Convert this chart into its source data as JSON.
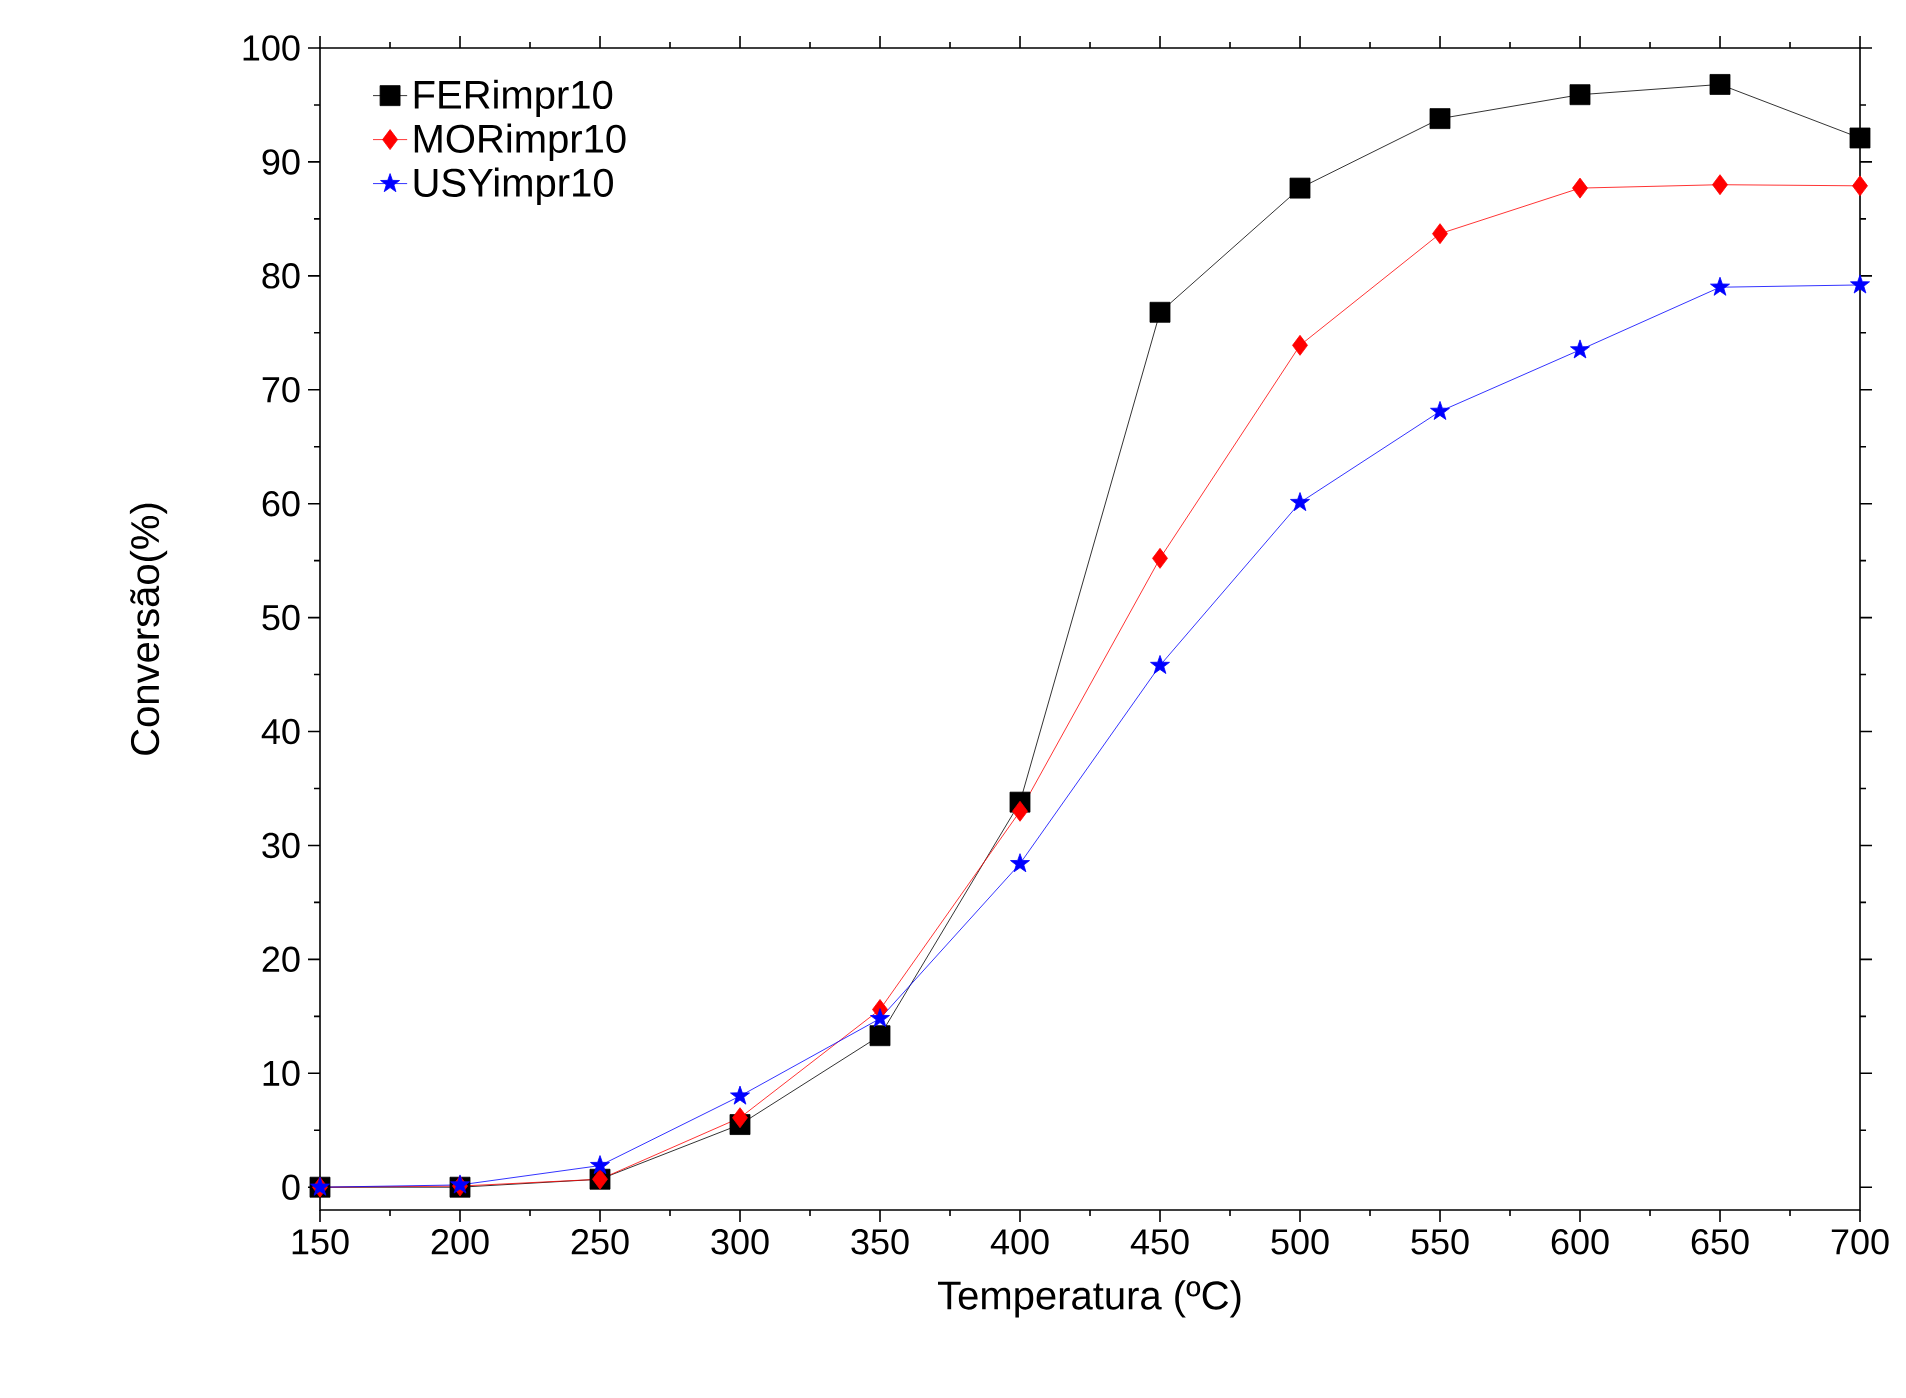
{
  "chart_data": {
    "type": "line",
    "xlabel": "Temperatura (ºC)",
    "ylabel": "Conversão(%)",
    "x": [
      150,
      200,
      250,
      300,
      350,
      400,
      450,
      500,
      550,
      600,
      650,
      700
    ],
    "series": [
      {
        "name": "FERimpr10",
        "color": "#000000",
        "marker": "square",
        "values": [
          0,
          0,
          0.7,
          5.5,
          13.3,
          33.8,
          76.8,
          87.7,
          93.8,
          95.9,
          96.8,
          92.1
        ]
      },
      {
        "name": "MORimpr10",
        "color": "#ff0000",
        "marker": "diamond",
        "values": [
          0,
          0.1,
          0.7,
          6.1,
          15.6,
          33,
          55.2,
          73.9,
          83.7,
          87.7,
          88.0,
          87.9
        ]
      },
      {
        "name": "USYimpr10",
        "color": "#0000ff",
        "marker": "star",
        "values": [
          0,
          0.2,
          1.9,
          8.0,
          14.8,
          28.4,
          45.8,
          60.1,
          68.1,
          73.5,
          79.0,
          79.2
        ]
      }
    ],
    "xlim": [
      150,
      700
    ],
    "xticks": [
      150,
      200,
      250,
      300,
      350,
      400,
      450,
      500,
      550,
      600,
      650,
      700
    ],
    "ylim": [
      -2,
      100
    ],
    "yticks": [
      0,
      10,
      20,
      30,
      40,
      50,
      60,
      70,
      80,
      90,
      100
    ],
    "grid": false,
    "legend": "top left",
    "line_style": "solid"
  }
}
